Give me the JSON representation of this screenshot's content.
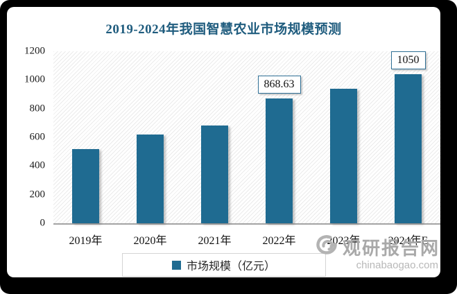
{
  "chart_data": {
    "type": "bar",
    "title": "2019-2024年我国智慧农业市场规模预测",
    "categories": [
      "2019年",
      "2020年",
      "2021年",
      "2022年",
      "2023年",
      "2024年E"
    ],
    "values": [
      520,
      620,
      682,
      868.63,
      938,
      1050
    ],
    "data_labels": [
      null,
      null,
      null,
      "868.63",
      null,
      "1050"
    ],
    "legend": "市场规模（亿元）",
    "xlabel": "",
    "ylabel": "",
    "ylim": [
      0,
      1200
    ],
    "yticks": [
      0,
      200,
      400,
      600,
      800,
      1000,
      1200
    ],
    "grid": false,
    "legend_position": "bottom",
    "bar_color": "#1F6B91",
    "title_color": "#1F5C7E",
    "label_box_border_color": "#2E6F95"
  },
  "watermark": {
    "name": "观研报告网",
    "url": "chinabaogao.com"
  }
}
